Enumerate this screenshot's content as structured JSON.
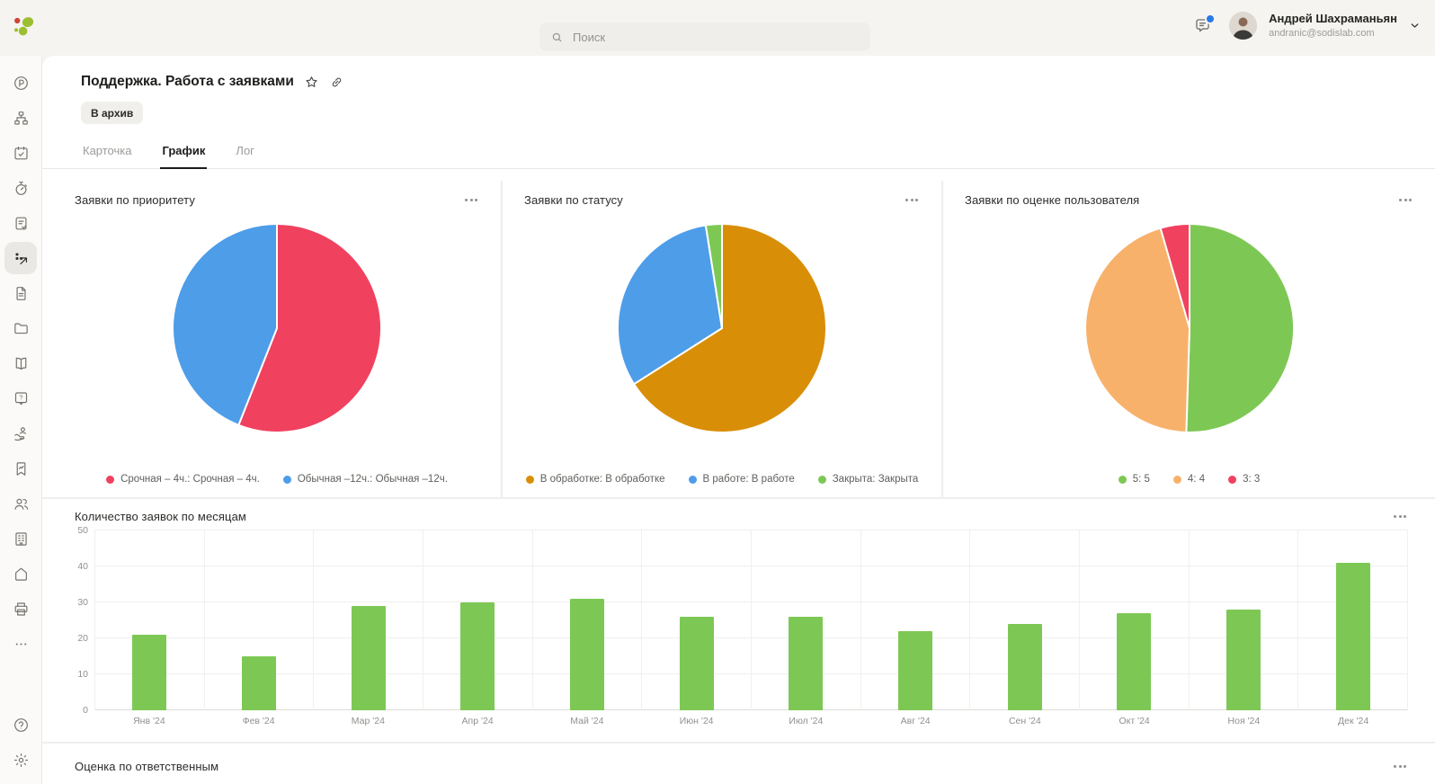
{
  "header": {
    "search": {
      "placeholder": "Поиск",
      "icon": "search-icon"
    },
    "messages": {
      "icon": "chat-icon",
      "unread": true
    },
    "user": {
      "name": "Андрей Шахраманьян",
      "email": "andranic@sodislab.com",
      "menu_icon": "chevron-down-icon"
    },
    "logo_icon": "sodis-logo"
  },
  "sidebar": {
    "items": [
      {
        "name": "payments",
        "icon": "p-circle-icon"
      },
      {
        "name": "structure",
        "icon": "sitemap-icon"
      },
      {
        "name": "calendar",
        "icon": "calendar-check-icon"
      },
      {
        "name": "timer",
        "icon": "stopwatch-icon"
      },
      {
        "name": "tasks",
        "icon": "note-check-icon"
      },
      {
        "name": "analytics",
        "icon": "analytics-icon",
        "active": true
      },
      {
        "name": "documents",
        "icon": "document-icon"
      },
      {
        "name": "files",
        "icon": "folder-icon"
      },
      {
        "name": "knowledge",
        "icon": "book-icon"
      },
      {
        "name": "support",
        "icon": "question-tag-icon"
      },
      {
        "name": "services",
        "icon": "hand-care-icon"
      },
      {
        "name": "reports",
        "icon": "bookmark-chart-icon"
      },
      {
        "name": "team",
        "icon": "people-icon"
      },
      {
        "name": "company",
        "icon": "building-icon"
      },
      {
        "name": "home",
        "icon": "home-icon"
      },
      {
        "name": "print",
        "icon": "printer-icon"
      },
      {
        "name": "more",
        "icon": "ellipsis-icon"
      }
    ],
    "bottom_items": [
      {
        "name": "help",
        "icon": "help-circle-icon"
      },
      {
        "name": "settings",
        "icon": "gear-icon"
      }
    ]
  },
  "page": {
    "title": "Поддержка. Работа с заявками",
    "title_icons": [
      "star-icon",
      "link-icon"
    ],
    "archive_button": "В архив",
    "tabs": [
      {
        "label": "Карточка",
        "active": false
      },
      {
        "label": "График",
        "active": true
      },
      {
        "label": "Лог",
        "active": false
      }
    ],
    "card_menu_icon": "more-horizontal-icon",
    "next_section": {
      "title": "Оценка по ответственным"
    }
  },
  "chart_data": [
    {
      "type": "pie",
      "title": "Заявки по приоритету",
      "start_angle": "top",
      "direction": "clockwise",
      "legend_position": "bottom",
      "slices": [
        {
          "label": "Срочная – 4ч.: Срочная – 4ч.",
          "value": 56,
          "color": "#f0415f"
        },
        {
          "label": "Обычная –12ч.: Обычная –12ч.",
          "value": 44,
          "color": "#4d9de9"
        }
      ]
    },
    {
      "type": "pie",
      "title": "Заявки по статусу",
      "start_angle": "top",
      "direction": "clockwise",
      "legend_position": "bottom",
      "slices": [
        {
          "label": "В обработке: В обработке",
          "value": 66,
          "color": "#d98e08"
        },
        {
          "label": "В работе: В работе",
          "value": 31.5,
          "color": "#4d9de9"
        },
        {
          "label": "Закрыта: Закрыта",
          "value": 2.5,
          "color": "#7dc855"
        }
      ]
    },
    {
      "type": "pie",
      "title": "Заявки по оценке пользователя",
      "start_angle": "top",
      "direction": "clockwise",
      "legend_position": "bottom",
      "slices": [
        {
          "label": "5: 5",
          "value": 50.5,
          "color": "#7dc855"
        },
        {
          "label": "4: 4",
          "value": 45,
          "color": "#f8b16b"
        },
        {
          "label": "3: 3",
          "value": 4.5,
          "color": "#f0415f"
        }
      ]
    },
    {
      "type": "bar",
      "title": "Количество заявок по месяцам",
      "categories": [
        "Янв '24",
        "Фев '24",
        "Мар '24",
        "Апр '24",
        "Май '24",
        "Июн '24",
        "Июл '24",
        "Авг '24",
        "Сен '24",
        "Окт '24",
        "Ноя '24",
        "Дек '24"
      ],
      "values": [
        21,
        15,
        29,
        30,
        31,
        26,
        26,
        22,
        24,
        27,
        28,
        41
      ],
      "bar_color": "#7dc855",
      "ylim": [
        0,
        50
      ],
      "yticks": [
        0,
        10,
        20,
        30,
        40,
        50
      ],
      "grid": true,
      "legend_position": "none"
    }
  ]
}
